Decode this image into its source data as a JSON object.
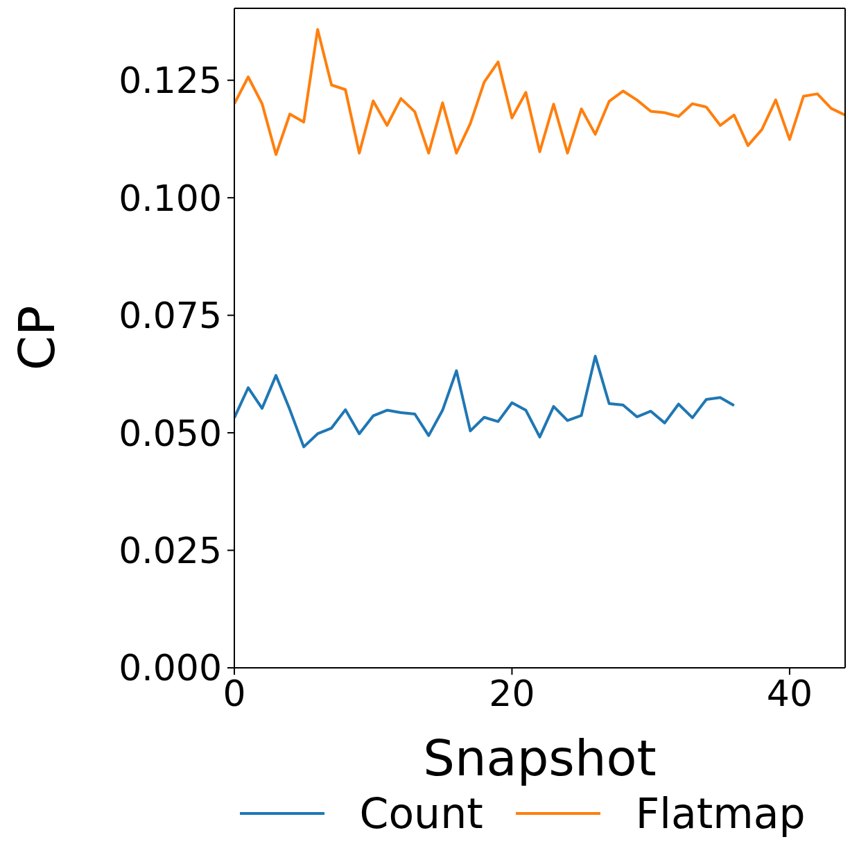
{
  "chart_data": {
    "type": "line",
    "xlabel": "Snapshot",
    "ylabel": "CP",
    "x": [
      0,
      1,
      2,
      3,
      4,
      5,
      6,
      7,
      8,
      9,
      10,
      11,
      12,
      13,
      14,
      15,
      16,
      17,
      18,
      19,
      20,
      21,
      22,
      23,
      24,
      25,
      26,
      27,
      28,
      29,
      30,
      31,
      32,
      33,
      34,
      35,
      36,
      37,
      38,
      39,
      40,
      41,
      42,
      43,
      44
    ],
    "series": [
      {
        "name": "Count",
        "color": "#1f77b4",
        "values": [
          0.0532,
          0.0596,
          0.0552,
          0.0622,
          0.0549,
          0.047,
          0.0498,
          0.051,
          0.0549,
          0.0498,
          0.0536,
          0.0548,
          0.0543,
          0.054,
          0.0494,
          0.0548,
          0.0632,
          0.0504,
          0.0533,
          0.0524,
          0.0564,
          0.0548,
          0.0491,
          0.0556,
          0.0526,
          0.0537,
          0.0663,
          0.0562,
          0.0559,
          0.0534,
          0.0546,
          0.0521,
          0.0561,
          0.0532,
          0.0571,
          0.0575,
          0.0558,
          null,
          null,
          null,
          null,
          null,
          null,
          null,
          null
        ]
      },
      {
        "name": "Flatmap",
        "color": "#ff7f0e",
        "values": [
          0.12,
          0.1257,
          0.12,
          0.1092,
          0.1178,
          0.1161,
          0.1358,
          0.124,
          0.123,
          0.1095,
          0.1206,
          0.1154,
          0.1211,
          0.1183,
          0.1095,
          0.1202,
          0.1095,
          0.1158,
          0.1246,
          0.1289,
          0.117,
          0.1224,
          0.1098,
          0.1199,
          0.1095,
          0.1189,
          0.1135,
          0.1205,
          0.1227,
          0.1208,
          0.1184,
          0.1181,
          0.1173,
          0.12,
          0.1193,
          0.1154,
          0.1176,
          0.1111,
          0.1145,
          0.1208,
          0.1124,
          0.1216,
          0.1221,
          0.119,
          0.1176
        ]
      }
    ],
    "xlim": [
      0,
      44
    ],
    "xticks": [
      0,
      20,
      40
    ],
    "ylim": [
      0,
      0.1403
    ],
    "yticks": [
      {
        "value": 0,
        "label": "0.000"
      },
      {
        "value": 0.025,
        "label": "0.025"
      },
      {
        "value": 0.05,
        "label": "0.050"
      },
      {
        "value": 0.075,
        "label": "0.075"
      },
      {
        "value": 0.1,
        "label": "0.100"
      },
      {
        "value": 0.125,
        "label": "0.125"
      }
    ],
    "legend": "bottom",
    "line_style": "solid",
    "marker": "none"
  }
}
